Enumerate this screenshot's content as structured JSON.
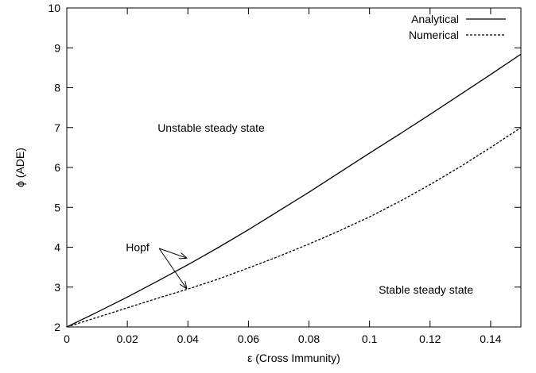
{
  "chart_data": {
    "type": "line",
    "xlabel": "ε (Cross Immunity)",
    "ylabel": "ϕ (ADE)",
    "xlim": [
      0,
      0.15
    ],
    "ylim": [
      2,
      10
    ],
    "x_ticks": [
      0,
      0.02,
      0.04,
      0.06,
      0.08,
      0.1,
      0.12,
      0.14
    ],
    "x_tick_labels": [
      "0",
      "0.02",
      "0.04",
      "0.06",
      "0.08",
      "0.1",
      "0.12",
      "0.14"
    ],
    "y_ticks": [
      2,
      3,
      4,
      5,
      6,
      7,
      8,
      9,
      10
    ],
    "y_tick_labels": [
      "2",
      "3",
      "4",
      "5",
      "6",
      "7",
      "8",
      "9",
      "10"
    ],
    "grid": false,
    "legend_position": "top-right",
    "series": [
      {
        "name": "Analytical",
        "style": "solid",
        "x": [
          0,
          0.01,
          0.02,
          0.03,
          0.04,
          0.05,
          0.06,
          0.07,
          0.08,
          0.09,
          0.1,
          0.11,
          0.12,
          0.13,
          0.14,
          0.15
        ],
        "y": [
          2.0,
          2.37,
          2.75,
          3.15,
          3.56,
          3.99,
          4.44,
          4.91,
          5.38,
          5.87,
          6.36,
          6.84,
          7.33,
          7.83,
          8.33,
          8.84
        ]
      },
      {
        "name": "Numerical",
        "style": "dashed",
        "x": [
          0,
          0.01,
          0.02,
          0.03,
          0.04,
          0.05,
          0.06,
          0.07,
          0.08,
          0.09,
          0.1,
          0.11,
          0.12,
          0.13,
          0.14,
          0.15
        ],
        "y": [
          2.0,
          2.24,
          2.48,
          2.72,
          2.95,
          3.2,
          3.48,
          3.77,
          4.08,
          4.41,
          4.76,
          5.15,
          5.57,
          6.02,
          6.5,
          7.0
        ]
      }
    ],
    "annotations": [
      {
        "text": "Unstable steady state",
        "x": 0.03,
        "y": 7.0
      },
      {
        "text": "Stable steady state",
        "x": 0.103,
        "y": 2.94
      },
      {
        "text": "Hopf",
        "x": 0.0195,
        "y": 4.0,
        "arrows": [
          {
            "from": [
              0.0305,
              3.97
            ],
            "to": [
              0.0395,
              3.73
            ]
          },
          {
            "from": [
              0.0305,
              3.97
            ],
            "to": [
              0.0395,
              2.97
            ]
          }
        ]
      }
    ]
  }
}
